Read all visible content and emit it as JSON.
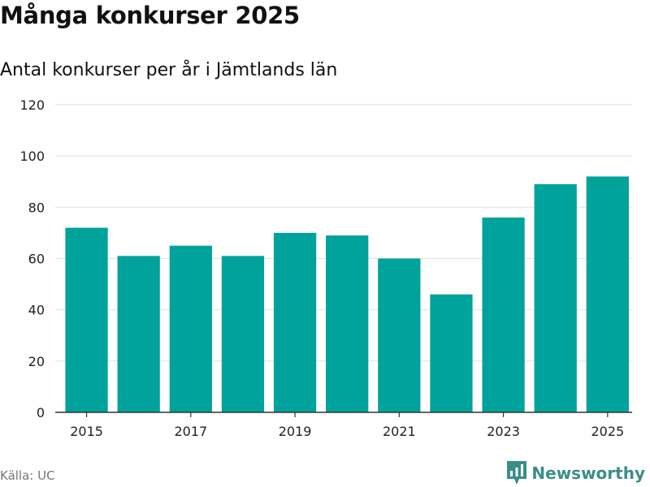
{
  "title": "Många konkurser 2025",
  "subtitle": "Antal konkurser per år i Jämtlands län",
  "source": "Källa: UC",
  "brand": {
    "name": "Newsworthy",
    "icon": "newsworthy-logo-icon",
    "color": "#3a8e8a"
  },
  "colors": {
    "bar": "#00a39b",
    "grid": "#e3e3e3",
    "axis": "#333333"
  },
  "chart_data": {
    "type": "bar",
    "title": "Många konkurser 2025",
    "subtitle": "Antal konkurser per år i Jämtlands län",
    "xlabel": "",
    "ylabel": "",
    "categories": [
      "2015",
      "2016",
      "2017",
      "2018",
      "2019",
      "2020",
      "2021",
      "2022",
      "2023",
      "2024",
      "2025"
    ],
    "values": [
      72,
      61,
      65,
      61,
      70,
      69,
      60,
      46,
      76,
      89,
      92
    ],
    "xtick_labels": [
      "2015",
      "2017",
      "2019",
      "2021",
      "2023",
      "2025"
    ],
    "yticks": [
      0,
      20,
      40,
      60,
      80,
      100,
      120
    ],
    "ylim": [
      0,
      120
    ],
    "grid": true
  }
}
